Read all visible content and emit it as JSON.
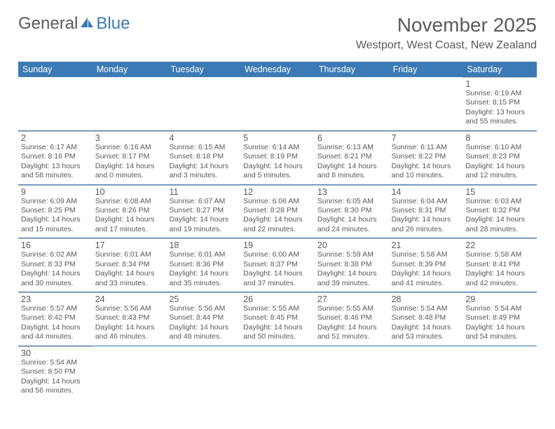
{
  "brand": {
    "part1": "General",
    "part2": "Blue"
  },
  "title": "November 2025",
  "location": "Westport, West Coast, New Zealand",
  "colors": {
    "accent": "#3b7ab5",
    "text": "#5a5a5a",
    "cell_border": "#c0c0c0",
    "bg": "#ffffff"
  },
  "weekdays": [
    "Sunday",
    "Monday",
    "Tuesday",
    "Wednesday",
    "Thursday",
    "Friday",
    "Saturday"
  ],
  "layout": {
    "first_weekday_index": 6,
    "num_days": 30
  },
  "days": {
    "1": {
      "sunrise": "6:19 AM",
      "sunset": "8:15 PM",
      "daylight": "13 hours and 55 minutes."
    },
    "2": {
      "sunrise": "6:17 AM",
      "sunset": "8:16 PM",
      "daylight": "13 hours and 58 minutes."
    },
    "3": {
      "sunrise": "6:16 AM",
      "sunset": "8:17 PM",
      "daylight": "14 hours and 0 minutes."
    },
    "4": {
      "sunrise": "6:15 AM",
      "sunset": "8:18 PM",
      "daylight": "14 hours and 3 minutes."
    },
    "5": {
      "sunrise": "6:14 AM",
      "sunset": "8:19 PM",
      "daylight": "14 hours and 5 minutes."
    },
    "6": {
      "sunrise": "6:13 AM",
      "sunset": "8:21 PM",
      "daylight": "14 hours and 8 minutes."
    },
    "7": {
      "sunrise": "6:11 AM",
      "sunset": "8:22 PM",
      "daylight": "14 hours and 10 minutes."
    },
    "8": {
      "sunrise": "6:10 AM",
      "sunset": "8:23 PM",
      "daylight": "14 hours and 12 minutes."
    },
    "9": {
      "sunrise": "6:09 AM",
      "sunset": "8:25 PM",
      "daylight": "14 hours and 15 minutes."
    },
    "10": {
      "sunrise": "6:08 AM",
      "sunset": "8:26 PM",
      "daylight": "14 hours and 17 minutes."
    },
    "11": {
      "sunrise": "6:07 AM",
      "sunset": "8:27 PM",
      "daylight": "14 hours and 19 minutes."
    },
    "12": {
      "sunrise": "6:06 AM",
      "sunset": "8:28 PM",
      "daylight": "14 hours and 22 minutes."
    },
    "13": {
      "sunrise": "6:05 AM",
      "sunset": "8:30 PM",
      "daylight": "14 hours and 24 minutes."
    },
    "14": {
      "sunrise": "6:04 AM",
      "sunset": "8:31 PM",
      "daylight": "14 hours and 26 minutes."
    },
    "15": {
      "sunrise": "6:03 AM",
      "sunset": "8:32 PM",
      "daylight": "14 hours and 28 minutes."
    },
    "16": {
      "sunrise": "6:02 AM",
      "sunset": "8:33 PM",
      "daylight": "14 hours and 30 minutes."
    },
    "17": {
      "sunrise": "6:01 AM",
      "sunset": "8:34 PM",
      "daylight": "14 hours and 33 minutes."
    },
    "18": {
      "sunrise": "6:01 AM",
      "sunset": "8:36 PM",
      "daylight": "14 hours and 35 minutes."
    },
    "19": {
      "sunrise": "6:00 AM",
      "sunset": "8:37 PM",
      "daylight": "14 hours and 37 minutes."
    },
    "20": {
      "sunrise": "5:59 AM",
      "sunset": "8:38 PM",
      "daylight": "14 hours and 39 minutes."
    },
    "21": {
      "sunrise": "5:58 AM",
      "sunset": "8:39 PM",
      "daylight": "14 hours and 41 minutes."
    },
    "22": {
      "sunrise": "5:58 AM",
      "sunset": "8:41 PM",
      "daylight": "14 hours and 42 minutes."
    },
    "23": {
      "sunrise": "5:57 AM",
      "sunset": "8:42 PM",
      "daylight": "14 hours and 44 minutes."
    },
    "24": {
      "sunrise": "5:56 AM",
      "sunset": "8:43 PM",
      "daylight": "14 hours and 46 minutes."
    },
    "25": {
      "sunrise": "5:56 AM",
      "sunset": "8:44 PM",
      "daylight": "14 hours and 48 minutes."
    },
    "26": {
      "sunrise": "5:55 AM",
      "sunset": "8:45 PM",
      "daylight": "14 hours and 50 minutes."
    },
    "27": {
      "sunrise": "5:55 AM",
      "sunset": "8:46 PM",
      "daylight": "14 hours and 51 minutes."
    },
    "28": {
      "sunrise": "5:54 AM",
      "sunset": "8:48 PM",
      "daylight": "14 hours and 53 minutes."
    },
    "29": {
      "sunrise": "5:54 AM",
      "sunset": "8:49 PM",
      "daylight": "14 hours and 54 minutes."
    },
    "30": {
      "sunrise": "5:54 AM",
      "sunset": "8:50 PM",
      "daylight": "14 hours and 56 minutes."
    }
  },
  "labels": {
    "sunrise": "Sunrise:",
    "sunset": "Sunset:",
    "daylight": "Daylight:"
  }
}
